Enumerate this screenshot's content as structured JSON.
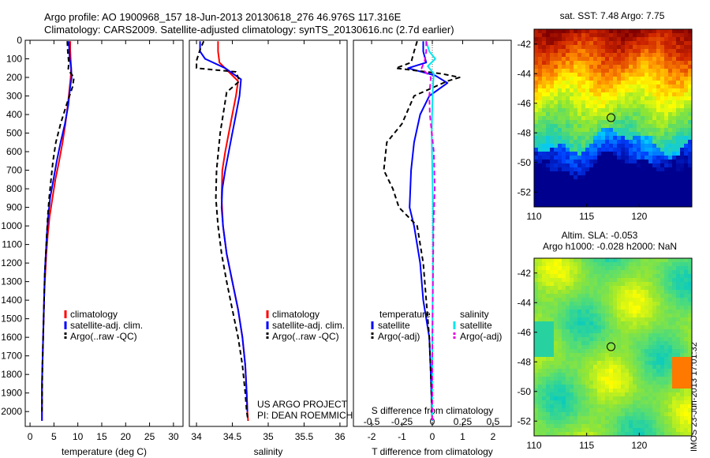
{
  "header": {
    "line1": "Argo profile: AO 1900968_157 18-Jun-2013 20130618_276 46.976S 117.316E",
    "line2": "Climatology: CARS2009. Satellite-adjusted climatology: synTS_20130616.nc (2.7d earlier)"
  },
  "side_stamp": "IMOS 23-Jun-2013 17:01:32",
  "project": {
    "line1": "US ARGO PROJECT",
    "line2": "PI: DEAN ROEMMICH"
  },
  "colors": {
    "climatology": "#ff0000",
    "satellite": "#0000ff",
    "argo": "#000000",
    "satellite_salinity": "#00e5ee",
    "argo_salinity": "#e600e6",
    "zero_line": "#555555"
  },
  "chart_data": [
    {
      "id": "temperature",
      "type": "line",
      "xlabel": "temperature (deg C)",
      "xlim": [
        -1,
        32
      ],
      "ylim": [
        2080,
        0
      ],
      "xticks": [
        0,
        5,
        10,
        15,
        20,
        25,
        30
      ],
      "yticks": [
        0,
        100,
        200,
        300,
        400,
        500,
        600,
        700,
        800,
        900,
        1000,
        1100,
        1200,
        1300,
        1400,
        1500,
        1600,
        1700,
        1800,
        1900,
        2000
      ],
      "legend": [
        "climatology",
        "satellite-adj. clim.",
        "Argo(..raw -QC)"
      ],
      "series": [
        {
          "name": "climatology",
          "color": "#ff0000",
          "dash": "",
          "x": [
            8.4,
            8.4,
            8.5,
            8.6,
            8.5,
            8.3,
            7.9,
            7.4,
            6.8,
            6.1,
            5.3,
            4.7,
            4.1,
            3.7,
            3.4,
            3.2,
            3.0,
            2.9,
            2.8,
            2.7,
            2.6,
            2.5,
            2.5,
            2.5
          ],
          "depth": [
            5,
            50,
            100,
            150,
            200,
            250,
            350,
            450,
            550,
            650,
            750,
            850,
            950,
            1050,
            1150,
            1250,
            1350,
            1450,
            1550,
            1650,
            1750,
            1850,
            1950,
            2050
          ]
        },
        {
          "name": "satellite-adj. clim.",
          "color": "#0000ff",
          "dash": "",
          "x": [
            8.1,
            8.2,
            8.3,
            8.6,
            8.7,
            8.4,
            8.0,
            7.3,
            6.4,
            5.6,
            4.9,
            4.2,
            3.8,
            3.5,
            3.3,
            3.1,
            3.0,
            2.9,
            2.8,
            2.7,
            2.6,
            2.5,
            2.5
          ],
          "depth": [
            5,
            50,
            100,
            150,
            200,
            250,
            350,
            450,
            550,
            650,
            750,
            850,
            950,
            1050,
            1150,
            1250,
            1350,
            1450,
            1550,
            1650,
            1750,
            1850,
            2050
          ]
        },
        {
          "name": "Argo(..raw -QC)",
          "color": "#000000",
          "dash": "6,4",
          "x": [
            7.8,
            7.9,
            8.1,
            8.0,
            9.2,
            8.9,
            7.6,
            6.4,
            5.4,
            4.8,
            4.4,
            4.0,
            3.7,
            3.5,
            3.3,
            3.1,
            3.0,
            2.9,
            2.8,
            2.7,
            2.6,
            2.5
          ],
          "depth": [
            5,
            60,
            120,
            160,
            200,
            250,
            350,
            450,
            550,
            650,
            750,
            850,
            950,
            1050,
            1150,
            1250,
            1350,
            1450,
            1550,
            1650,
            1750,
            2000
          ]
        }
      ]
    },
    {
      "id": "salinity",
      "type": "line",
      "xlabel": "salinity",
      "xlim": [
        33.9,
        36.1
      ],
      "ylim": [
        2080,
        0
      ],
      "xticks": [
        34,
        34.5,
        35,
        35.5,
        36
      ],
      "legend": [
        "climatology",
        "satellite-adj. clim.",
        "Argo(..raw -QC)"
      ],
      "series": [
        {
          "name": "climatology",
          "color": "#ff0000",
          "dash": "",
          "x": [
            34.3,
            34.3,
            34.32,
            34.45,
            34.58,
            34.55,
            34.5,
            34.45,
            34.4,
            34.36,
            34.35,
            34.37,
            34.42,
            34.5,
            34.58,
            34.64,
            34.68,
            34.7,
            34.71,
            34.72
          ],
          "depth": [
            5,
            60,
            120,
            170,
            220,
            300,
            400,
            500,
            600,
            700,
            850,
            1000,
            1150,
            1300,
            1450,
            1600,
            1750,
            1900,
            2000,
            2050
          ]
        },
        {
          "name": "satellite-adj. clim.",
          "color": "#0000ff",
          "dash": "",
          "x": [
            34.05,
            34.05,
            34.12,
            34.4,
            34.62,
            34.6,
            34.55,
            34.5,
            34.45,
            34.4,
            34.36,
            34.35,
            34.37,
            34.42,
            34.5,
            34.58,
            34.64,
            34.68,
            34.7,
            34.71
          ],
          "depth": [
            5,
            60,
            100,
            150,
            210,
            300,
            400,
            500,
            600,
            700,
            800,
            900,
            1000,
            1150,
            1300,
            1450,
            1600,
            1750,
            1900,
            2000
          ]
        },
        {
          "name": "Argo(..raw -QC)",
          "color": "#000000",
          "dash": "6,4",
          "x": [
            34.1,
            34.05,
            34.0,
            34.0,
            34.55,
            34.6,
            34.42,
            34.38,
            34.33,
            34.28,
            34.27,
            34.3,
            34.35,
            34.42,
            34.5,
            34.58,
            34.64,
            34.68,
            34.7,
            34.72
          ],
          "depth": [
            5,
            50,
            110,
            150,
            170,
            220,
            280,
            380,
            500,
            700,
            850,
            1000,
            1150,
            1300,
            1450,
            1600,
            1750,
            1900,
            2000,
            2050
          ]
        }
      ]
    },
    {
      "id": "difference",
      "type": "line",
      "xlabel": "T difference from climatology",
      "x2label": "S difference from climatology",
      "xlim": [
        -2.6,
        2.6
      ],
      "ylim": [
        2080,
        0
      ],
      "xticks": [
        -2,
        -1,
        0,
        1,
        2
      ],
      "x2lim": [
        -0.65,
        0.65
      ],
      "x2ticks": [
        -0.5,
        -0.25,
        0,
        0.25,
        0.5
      ],
      "x2ticklabels": [
        "-0.5",
        "-0.25",
        "0",
        "0.25",
        "0.5"
      ],
      "legend_groups": [
        {
          "title": "temperature",
          "items": [
            "satellite",
            "Argo(-adj)"
          ]
        },
        {
          "title": "salinity",
          "items": [
            "satellite",
            "Argo(-adj)"
          ]
        }
      ],
      "series": [
        {
          "name": "satellite",
          "group": "temperature",
          "color": "#0000ff",
          "dash": "",
          "x": [
            -0.3,
            -0.3,
            -0.2,
            -0.8,
            0.1,
            0.5,
            -0.1,
            -0.4,
            -0.6,
            -0.7,
            -0.75,
            -0.6,
            -0.4,
            -0.3,
            -0.1,
            -0.05,
            0.0
          ],
          "depth": [
            5,
            60,
            120,
            150,
            190,
            230,
            300,
            400,
            550,
            700,
            900,
            1000,
            1200,
            1400,
            1600,
            1800,
            2050
          ]
        },
        {
          "name": "Argo(-adj)",
          "group": "temperature",
          "color": "#000000",
          "dash": "6,4",
          "x": [
            -0.5,
            -0.6,
            -0.7,
            -1.2,
            0.3,
            0.9,
            0.5,
            -0.6,
            -1.0,
            -1.5,
            -1.6,
            -1.3,
            -1.1,
            -0.5,
            -0.3,
            -0.2,
            -0.1,
            -0.05,
            0.0
          ],
          "depth": [
            5,
            60,
            120,
            150,
            180,
            200,
            220,
            300,
            450,
            550,
            700,
            800,
            900,
            1000,
            1200,
            1400,
            1600,
            1800,
            2050
          ]
        },
        {
          "name": "satellite",
          "group": "salinity",
          "color": "#00e5ee",
          "dash": "",
          "x": [
            -0.2,
            -0.1,
            0.1,
            -0.15,
            0.05,
            0.02,
            0.0,
            -0.02,
            0.0,
            0.02,
            0.02,
            0.0,
            0.0
          ],
          "depth": [
            5,
            60,
            100,
            140,
            180,
            250,
            350,
            500,
            700,
            900,
            1200,
            1600,
            2050
          ]
        },
        {
          "name": "Argo(-adj)",
          "group": "salinity",
          "color": "#e600e6",
          "dash": "6,4",
          "x": [
            -0.2,
            -0.2,
            -0.25,
            -0.35,
            -0.05,
            -0.1,
            -0.08,
            0.05,
            0.08,
            0.04,
            0.02,
            0.0,
            0.0
          ],
          "depth": [
            5,
            60,
            110,
            150,
            200,
            300,
            400,
            600,
            800,
            1000,
            1300,
            1700,
            2050
          ]
        }
      ]
    },
    {
      "id": "sst-map",
      "type": "heatmap",
      "title": "sat. SST: 7.48 Argo: 7.75",
      "xlim": [
        110,
        125
      ],
      "ylim": [
        -53,
        -41
      ],
      "xticks": [
        110,
        115,
        120
      ],
      "yticks": [
        -42,
        -44,
        -46,
        -48,
        -50,
        -52
      ],
      "colormap": [
        "#00008f",
        "#0040ff",
        "#00c8ff",
        "#32d296",
        "#8fe632",
        "#ffff00",
        "#ff8c00",
        "#d22800",
        "#800000"
      ],
      "marker": {
        "lon": 117.316,
        "lat": -46.976
      }
    },
    {
      "id": "sla-map",
      "type": "heatmap",
      "title": "Altim. SLA: -0.053",
      "subtitle": "Argo h1000: -0.028 h2000: NaN",
      "xlim": [
        110,
        125
      ],
      "ylim": [
        -53,
        -41
      ],
      "xticks": [
        110,
        115,
        120
      ],
      "yticks": [
        -42,
        -44,
        -46,
        -48,
        -50,
        -52
      ],
      "colormap": [
        "#00c8c8",
        "#50dc78",
        "#96e632",
        "#ffff00",
        "#ffa000",
        "#ff5000"
      ],
      "marker": {
        "lon": 117.316,
        "lat": -46.976
      }
    }
  ]
}
